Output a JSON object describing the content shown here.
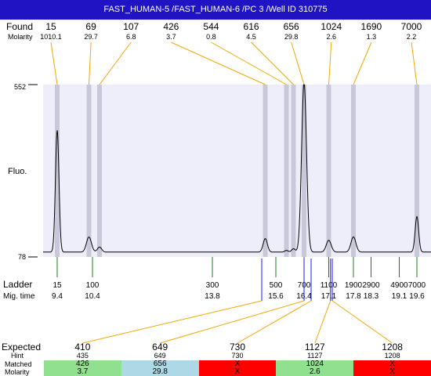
{
  "title": "FAST_HUMAN-5 /FAST_HUMAN-6 /PC 3 /Well ID 310775",
  "labels": {
    "found": "Found",
    "molarity": "Molarity",
    "y_axis": "Fluo.",
    "ladder": "Ladder",
    "mig_time": "Mig. time",
    "expected": "Expected",
    "hint": "Hint",
    "matched": "Matched",
    "molarity_row": "Molarity"
  },
  "colors": {
    "title_bg": "#1f13c4",
    "plot_bg": "#eeeefb",
    "band": "#c8c8d8",
    "orange": "#f2a900",
    "green": "#1c7a1c",
    "blue": "#1a1aff",
    "match_green": "#90e090",
    "match_blue": "#add8e6",
    "match_red": "#ff0000"
  },
  "chart_data": {
    "type": "line",
    "y_ticks": [
      "552",
      "78"
    ],
    "ylim": [
      78,
      552
    ],
    "mig_time_range": [
      9.0,
      20.0
    ],
    "found_peaks": [
      {
        "size": "15",
        "molarity": "1010.1",
        "time": 9.4
      },
      {
        "size": "69",
        "molarity": "29.7",
        "time": 10.3
      },
      {
        "size": "107",
        "molarity": "6.8",
        "time": 10.6
      },
      {
        "size": "426",
        "molarity": "3.7",
        "time": 15.3
      },
      {
        "size": "544",
        "molarity": "0.8",
        "time": 15.9
      },
      {
        "size": "616",
        "molarity": "4.5",
        "time": 16.1
      },
      {
        "size": "656",
        "molarity": "29.8",
        "time": 16.4
      },
      {
        "size": "1024",
        "molarity": "2.6",
        "time": 17.1
      },
      {
        "size": "1690",
        "molarity": "1.3",
        "time": 17.8
      },
      {
        "size": "7000",
        "molarity": "2.2",
        "time": 19.6
      }
    ],
    "ladder": [
      {
        "size": "15",
        "time": "9.4"
      },
      {
        "size": "100",
        "time": "10.4"
      },
      {
        "size": "300",
        "time": "13.8"
      },
      {
        "size": "500",
        "time": "15.6"
      },
      {
        "size": "700",
        "time": "16.4"
      },
      {
        "size": "1100",
        "time": "17.1"
      },
      {
        "size": "1900",
        "time": "17.8"
      },
      {
        "size": "2900",
        "time": "18.3"
      },
      {
        "size": "4900",
        "time": "19.1"
      },
      {
        "size": "7000",
        "time": "19.6"
      }
    ],
    "expected": [
      {
        "size": "410",
        "hint": "435",
        "matched": "426",
        "molarity": "3.7",
        "status": "green",
        "time": 15.2
      },
      {
        "size": "649",
        "hint": "649",
        "matched": "656",
        "molarity": "29.8",
        "status": "blue",
        "time": 16.4
      },
      {
        "size": "730",
        "hint": "730",
        "matched": "X",
        "molarity": "X",
        "status": "red",
        "time": 16.6
      },
      {
        "size": "1127",
        "hint": "1127",
        "matched": "1024",
        "molarity": "2.6",
        "status": "green",
        "time": 17.15
      },
      {
        "size": "1208",
        "hint": "1208",
        "matched": "X",
        "molarity": "X",
        "status": "red",
        "time": 17.2
      }
    ],
    "trace_peaks": [
      {
        "time": 9.4,
        "height": 0.72,
        "width": 0.05
      },
      {
        "time": 10.3,
        "height": 0.09,
        "width": 0.07
      },
      {
        "time": 10.6,
        "height": 0.03,
        "width": 0.06
      },
      {
        "time": 15.3,
        "height": 0.08,
        "width": 0.06
      },
      {
        "time": 15.9,
        "height": 0.01,
        "width": 0.05
      },
      {
        "time": 16.1,
        "height": 0.02,
        "width": 0.05
      },
      {
        "time": 16.4,
        "height": 1.0,
        "width": 0.07
      },
      {
        "time": 17.1,
        "height": 0.07,
        "width": 0.07
      },
      {
        "time": 17.8,
        "height": 0.09,
        "width": 0.07
      },
      {
        "time": 19.6,
        "height": 0.21,
        "width": 0.05
      }
    ]
  }
}
